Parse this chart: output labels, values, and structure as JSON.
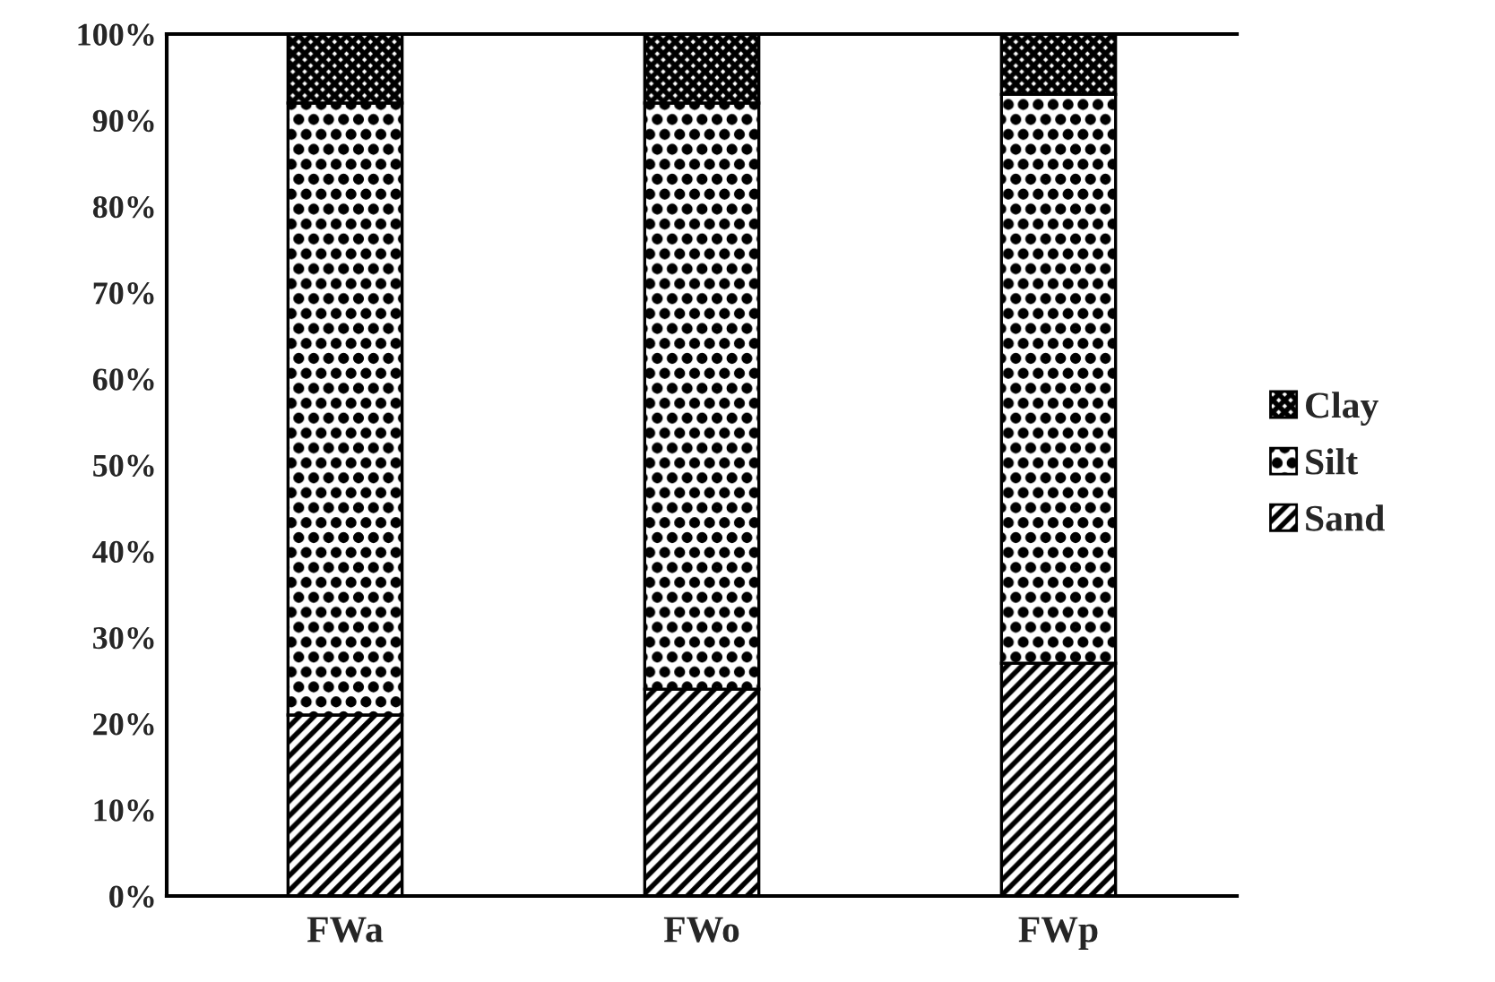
{
  "chart_data": {
    "type": "bar",
    "stacked": true,
    "categories": [
      "FWa",
      "FWo",
      "FWp"
    ],
    "series": [
      {
        "name": "Sand",
        "color": "#000000",
        "values": [
          21,
          24,
          27
        ]
      },
      {
        "name": "Silt",
        "color": "#000000",
        "values": [
          71,
          68,
          66
        ]
      },
      {
        "name": "Clay",
        "color": "#000000",
        "values": [
          8,
          8,
          7
        ]
      }
    ],
    "ylim": [
      0,
      100
    ],
    "yticks": [
      {
        "value": 0,
        "label": "0%"
      },
      {
        "value": 10,
        "label": "10%"
      },
      {
        "value": 20,
        "label": "20%"
      },
      {
        "value": 30,
        "label": "30%"
      },
      {
        "value": 40,
        "label": "40%"
      },
      {
        "value": 50,
        "label": "50%"
      },
      {
        "value": 60,
        "label": "60%"
      },
      {
        "value": 70,
        "label": "70%"
      },
      {
        "value": 80,
        "label": "80%"
      },
      {
        "value": 90,
        "label": "90%"
      },
      {
        "value": 100,
        "label": "100%"
      }
    ],
    "legend": "right",
    "grid": false
  }
}
